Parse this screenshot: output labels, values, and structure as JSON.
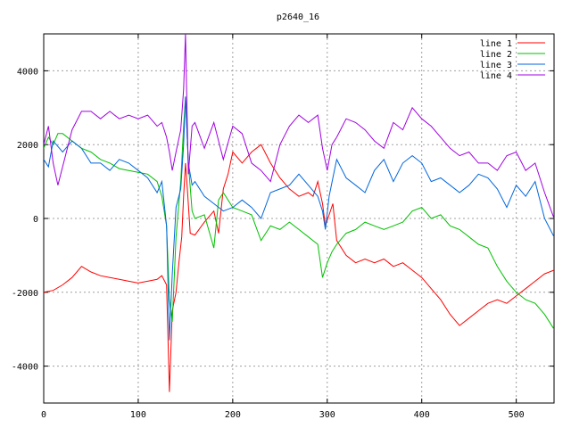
{
  "chart_data": {
    "type": "line",
    "title": "p2640_16",
    "xlabel": "",
    "ylabel": "",
    "xlim": [
      0,
      540
    ],
    "ylim": [
      -5000,
      5000
    ],
    "x_ticks": [
      0,
      100,
      200,
      300,
      400,
      500
    ],
    "y_ticks": [
      -4000,
      -2000,
      0,
      2000,
      4000
    ],
    "grid": true,
    "legend_position": "top-right",
    "series": [
      {
        "name": "line 1",
        "color": "#ff0000",
        "points": [
          [
            0,
            -2000
          ],
          [
            10,
            -1950
          ],
          [
            20,
            -1800
          ],
          [
            30,
            -1600
          ],
          [
            40,
            -1300
          ],
          [
            50,
            -1450
          ],
          [
            60,
            -1550
          ],
          [
            70,
            -1600
          ],
          [
            80,
            -1650
          ],
          [
            90,
            -1700
          ],
          [
            100,
            -1750
          ],
          [
            110,
            -1700
          ],
          [
            120,
            -1650
          ],
          [
            125,
            -1550
          ],
          [
            130,
            -1800
          ],
          [
            133,
            -4700
          ],
          [
            136,
            -2500
          ],
          [
            140,
            -2000
          ],
          [
            143,
            -1200
          ],
          [
            146,
            -500
          ],
          [
            148,
            600
          ],
          [
            150,
            1500
          ],
          [
            152,
            800
          ],
          [
            155,
            -400
          ],
          [
            160,
            -450
          ],
          [
            170,
            -100
          ],
          [
            180,
            200
          ],
          [
            185,
            -400
          ],
          [
            190,
            800
          ],
          [
            195,
            1200
          ],
          [
            200,
            1800
          ],
          [
            210,
            1500
          ],
          [
            220,
            1800
          ],
          [
            230,
            2000
          ],
          [
            240,
            1500
          ],
          [
            250,
            1100
          ],
          [
            260,
            800
          ],
          [
            270,
            600
          ],
          [
            280,
            700
          ],
          [
            285,
            600
          ],
          [
            290,
            1000
          ],
          [
            295,
            400
          ],
          [
            298,
            -200
          ],
          [
            302,
            100
          ],
          [
            306,
            400
          ],
          [
            310,
            -600
          ],
          [
            320,
            -1000
          ],
          [
            330,
            -1200
          ],
          [
            340,
            -1100
          ],
          [
            350,
            -1200
          ],
          [
            360,
            -1100
          ],
          [
            370,
            -1300
          ],
          [
            380,
            -1200
          ],
          [
            390,
            -1400
          ],
          [
            400,
            -1600
          ],
          [
            410,
            -1900
          ],
          [
            420,
            -2200
          ],
          [
            430,
            -2600
          ],
          [
            440,
            -2900
          ],
          [
            450,
            -2700
          ],
          [
            460,
            -2500
          ],
          [
            470,
            -2300
          ],
          [
            480,
            -2200
          ],
          [
            490,
            -2300
          ],
          [
            500,
            -2100
          ],
          [
            510,
            -1900
          ],
          [
            520,
            -1700
          ],
          [
            530,
            -1500
          ],
          [
            540,
            -1400
          ]
        ]
      },
      {
        "name": "line 2",
        "color": "#00c000",
        "points": [
          [
            0,
            1900
          ],
          [
            5,
            2200
          ],
          [
            10,
            2000
          ],
          [
            15,
            2300
          ],
          [
            20,
            2300
          ],
          [
            30,
            2100
          ],
          [
            40,
            1900
          ],
          [
            50,
            1800
          ],
          [
            60,
            1600
          ],
          [
            70,
            1500
          ],
          [
            80,
            1350
          ],
          [
            90,
            1300
          ],
          [
            100,
            1250
          ],
          [
            110,
            1200
          ],
          [
            120,
            1000
          ],
          [
            125,
            600
          ],
          [
            130,
            -200
          ],
          [
            133,
            -2200
          ],
          [
            136,
            -2800
          ],
          [
            140,
            -500
          ],
          [
            145,
            1000
          ],
          [
            148,
            2500
          ],
          [
            150,
            3300
          ],
          [
            153,
            1500
          ],
          [
            157,
            200
          ],
          [
            160,
            0
          ],
          [
            170,
            100
          ],
          [
            180,
            -800
          ],
          [
            185,
            500
          ],
          [
            190,
            700
          ],
          [
            200,
            300
          ],
          [
            210,
            200
          ],
          [
            220,
            100
          ],
          [
            230,
            -600
          ],
          [
            240,
            -200
          ],
          [
            250,
            -300
          ],
          [
            260,
            -100
          ],
          [
            270,
            -300
          ],
          [
            280,
            -500
          ],
          [
            290,
            -700
          ],
          [
            295,
            -1600
          ],
          [
            300,
            -1200
          ],
          [
            305,
            -900
          ],
          [
            310,
            -700
          ],
          [
            320,
            -400
          ],
          [
            330,
            -300
          ],
          [
            340,
            -100
          ],
          [
            350,
            -200
          ],
          [
            360,
            -300
          ],
          [
            370,
            -200
          ],
          [
            380,
            -100
          ],
          [
            390,
            200
          ],
          [
            400,
            300
          ],
          [
            410,
            0
          ],
          [
            420,
            100
          ],
          [
            430,
            -200
          ],
          [
            440,
            -300
          ],
          [
            450,
            -500
          ],
          [
            460,
            -700
          ],
          [
            470,
            -800
          ],
          [
            480,
            -1300
          ],
          [
            490,
            -1700
          ],
          [
            500,
            -2000
          ],
          [
            510,
            -2200
          ],
          [
            520,
            -2300
          ],
          [
            530,
            -2600
          ],
          [
            540,
            -3000
          ]
        ]
      },
      {
        "name": "line 3",
        "color": "#0066dd",
        "points": [
          [
            0,
            1600
          ],
          [
            5,
            1400
          ],
          [
            10,
            2100
          ],
          [
            20,
            1800
          ],
          [
            30,
            2100
          ],
          [
            40,
            1900
          ],
          [
            50,
            1500
          ],
          [
            60,
            1500
          ],
          [
            70,
            1300
          ],
          [
            80,
            1600
          ],
          [
            90,
            1500
          ],
          [
            100,
            1300
          ],
          [
            110,
            1100
          ],
          [
            120,
            700
          ],
          [
            125,
            1000
          ],
          [
            130,
            -200
          ],
          [
            133,
            -3300
          ],
          [
            136,
            -1500
          ],
          [
            140,
            300
          ],
          [
            145,
            800
          ],
          [
            148,
            2000
          ],
          [
            150,
            3300
          ],
          [
            153,
            1500
          ],
          [
            157,
            900
          ],
          [
            160,
            1000
          ],
          [
            170,
            600
          ],
          [
            180,
            400
          ],
          [
            190,
            200
          ],
          [
            200,
            300
          ],
          [
            210,
            500
          ],
          [
            220,
            300
          ],
          [
            230,
            0
          ],
          [
            240,
            700
          ],
          [
            250,
            800
          ],
          [
            260,
            900
          ],
          [
            270,
            1200
          ],
          [
            280,
            900
          ],
          [
            290,
            600
          ],
          [
            295,
            200
          ],
          [
            298,
            -300
          ],
          [
            302,
            600
          ],
          [
            306,
            1100
          ],
          [
            310,
            1600
          ],
          [
            320,
            1100
          ],
          [
            330,
            900
          ],
          [
            340,
            700
          ],
          [
            350,
            1300
          ],
          [
            360,
            1600
          ],
          [
            370,
            1000
          ],
          [
            380,
            1500
          ],
          [
            390,
            1700
          ],
          [
            400,
            1500
          ],
          [
            410,
            1000
          ],
          [
            420,
            1100
          ],
          [
            430,
            900
          ],
          [
            440,
            700
          ],
          [
            450,
            900
          ],
          [
            460,
            1200
          ],
          [
            470,
            1100
          ],
          [
            480,
            800
          ],
          [
            490,
            300
          ],
          [
            500,
            900
          ],
          [
            510,
            600
          ],
          [
            520,
            1000
          ],
          [
            530,
            0
          ],
          [
            540,
            -500
          ]
        ]
      },
      {
        "name": "line 4",
        "color": "#a000e0",
        "points": [
          [
            0,
            2000
          ],
          [
            5,
            2500
          ],
          [
            10,
            1500
          ],
          [
            15,
            900
          ],
          [
            20,
            1400
          ],
          [
            30,
            2400
          ],
          [
            40,
            2900
          ],
          [
            50,
            2900
          ],
          [
            60,
            2700
          ],
          [
            70,
            2900
          ],
          [
            80,
            2700
          ],
          [
            90,
            2800
          ],
          [
            100,
            2700
          ],
          [
            110,
            2800
          ],
          [
            120,
            2500
          ],
          [
            125,
            2600
          ],
          [
            130,
            2200
          ],
          [
            133,
            1800
          ],
          [
            136,
            1300
          ],
          [
            140,
            1800
          ],
          [
            145,
            2400
          ],
          [
            148,
            3500
          ],
          [
            150,
            5000
          ],
          [
            153,
            1200
          ],
          [
            157,
            2500
          ],
          [
            160,
            2600
          ],
          [
            170,
            1900
          ],
          [
            180,
            2600
          ],
          [
            190,
            1600
          ],
          [
            200,
            2500
          ],
          [
            210,
            2300
          ],
          [
            220,
            1500
          ],
          [
            230,
            1300
          ],
          [
            240,
            1000
          ],
          [
            250,
            2000
          ],
          [
            260,
            2500
          ],
          [
            270,
            2800
          ],
          [
            280,
            2600
          ],
          [
            290,
            2800
          ],
          [
            295,
            1900
          ],
          [
            300,
            1300
          ],
          [
            305,
            2000
          ],
          [
            310,
            2200
          ],
          [
            320,
            2700
          ],
          [
            330,
            2600
          ],
          [
            340,
            2400
          ],
          [
            350,
            2100
          ],
          [
            360,
            1900
          ],
          [
            370,
            2600
          ],
          [
            380,
            2400
          ],
          [
            390,
            3000
          ],
          [
            400,
            2700
          ],
          [
            410,
            2500
          ],
          [
            420,
            2200
          ],
          [
            430,
            1900
          ],
          [
            440,
            1700
          ],
          [
            450,
            1800
          ],
          [
            460,
            1500
          ],
          [
            470,
            1500
          ],
          [
            480,
            1300
          ],
          [
            490,
            1700
          ],
          [
            500,
            1800
          ],
          [
            510,
            1300
          ],
          [
            520,
            1500
          ],
          [
            530,
            700
          ],
          [
            540,
            0
          ]
        ]
      }
    ]
  }
}
